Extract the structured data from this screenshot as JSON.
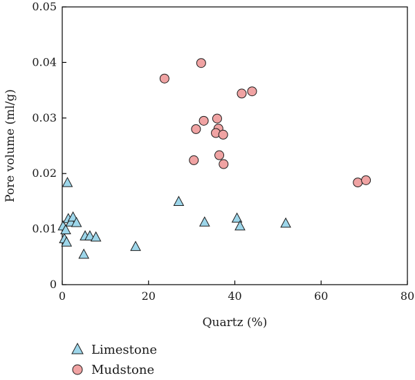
{
  "chart_data": {
    "type": "scatter",
    "title": "",
    "xlabel": "Quartz (%)",
    "ylabel": "Pore volume (ml/g)",
    "xlim": [
      0,
      80
    ],
    "ylim": [
      0,
      0.05
    ],
    "xticks": [
      "0",
      "20",
      "40",
      "60",
      "80"
    ],
    "yticks": [
      "0",
      "0.01",
      "0.02",
      "0.03",
      "0.04",
      "0.05"
    ],
    "grid": false,
    "legend_position": "bottom-left",
    "series": [
      {
        "name": "Limestone",
        "marker": "triangle",
        "color": "#9dd6ea",
        "points": [
          [
            0.2,
            0.0105
          ],
          [
            0.5,
            0.0082
          ],
          [
            0.8,
            0.0098
          ],
          [
            1.0,
            0.0076
          ],
          [
            1.2,
            0.0183
          ],
          [
            1.4,
            0.0118
          ],
          [
            2.0,
            0.0112
          ],
          [
            2.5,
            0.0121
          ],
          [
            3.3,
            0.0111
          ],
          [
            5.0,
            0.0054
          ],
          [
            5.3,
            0.0087
          ],
          [
            6.4,
            0.0087
          ],
          [
            7.8,
            0.0085
          ],
          [
            17.0,
            0.0068
          ],
          [
            27.0,
            0.0149
          ],
          [
            33.0,
            0.0112
          ],
          [
            40.5,
            0.0119
          ],
          [
            41.2,
            0.0105
          ],
          [
            51.8,
            0.011
          ]
        ]
      },
      {
        "name": "Mudstone",
        "marker": "circle",
        "color": "#f0a3a3",
        "points": [
          [
            23.7,
            0.0371
          ],
          [
            32.2,
            0.0399
          ],
          [
            41.6,
            0.0344
          ],
          [
            44.0,
            0.0348
          ],
          [
            32.8,
            0.0295
          ],
          [
            35.9,
            0.0299
          ],
          [
            31.0,
            0.028
          ],
          [
            36.2,
            0.0281
          ],
          [
            35.6,
            0.0273
          ],
          [
            37.3,
            0.027
          ],
          [
            36.4,
            0.0233
          ],
          [
            30.5,
            0.0224
          ],
          [
            37.4,
            0.0217
          ],
          [
            68.5,
            0.0184
          ],
          [
            70.4,
            0.0188
          ]
        ]
      }
    ]
  }
}
